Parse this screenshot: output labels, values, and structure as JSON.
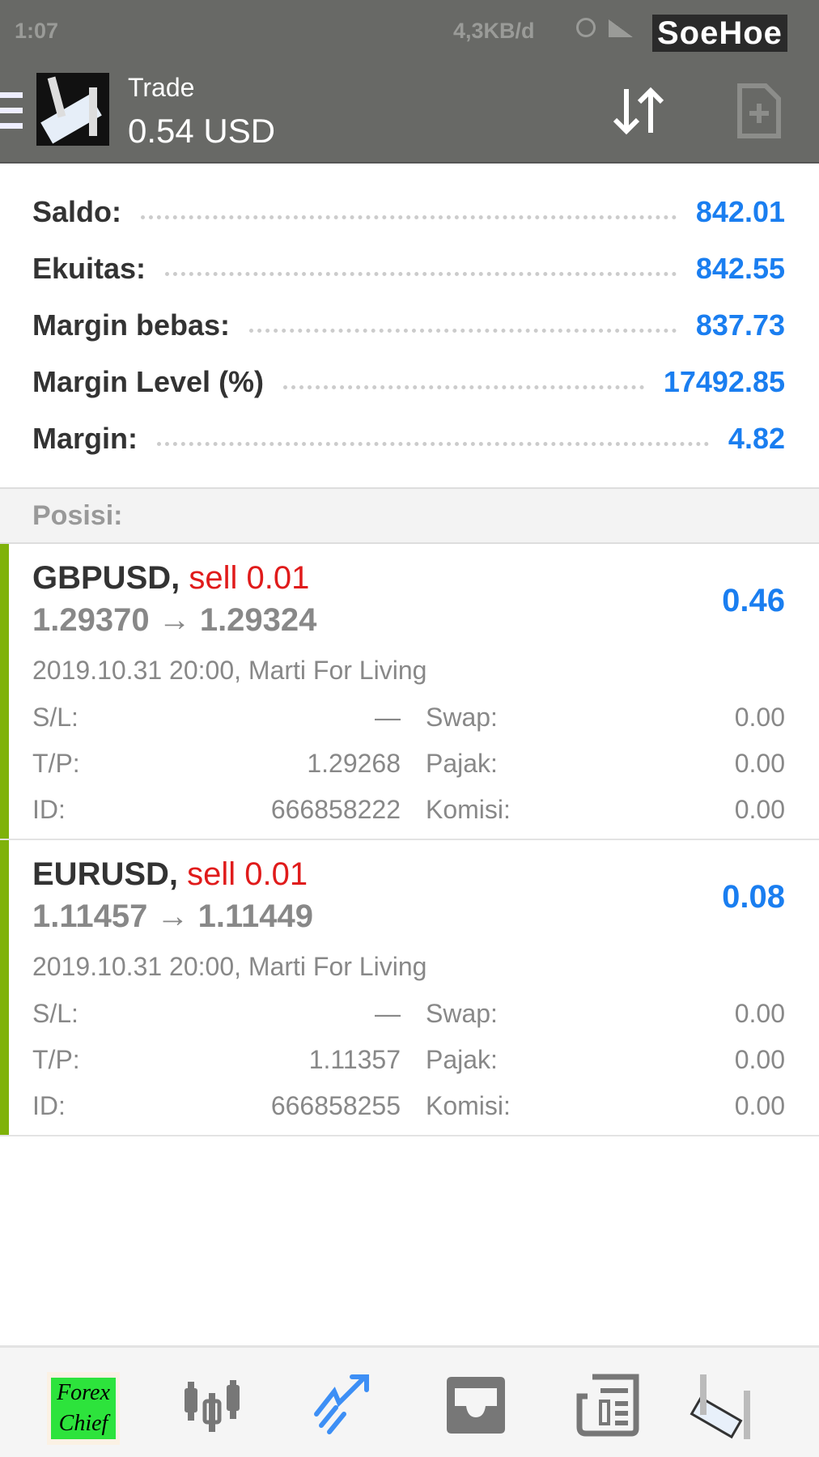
{
  "status_bar": {
    "time": "1:07",
    "network_speed": "4,3KB/d",
    "watermark": "SoeHoe"
  },
  "header": {
    "title": "Trade",
    "subtitle": "0.54 USD",
    "menu_icon": "hamburger-icon",
    "sort_icon": "sort-arrows-icon",
    "new_order_icon": "file-plus-icon"
  },
  "account": [
    {
      "label": "Saldo:",
      "value": "842.01"
    },
    {
      "label": "Ekuitas:",
      "value": "842.55"
    },
    {
      "label": "Margin bebas:",
      "value": "837.73"
    },
    {
      "label": "Margin Level (%)",
      "value": "17492.85"
    },
    {
      "label": "Margin:",
      "value": "4.82"
    }
  ],
  "positions_header": "Posisi:",
  "positions": [
    {
      "symbol": "GBPUSD,",
      "side": "sell 0.01",
      "prices": "1.29370 → 1.29324",
      "profit": "0.46",
      "datetime": "2019.10.31 20:00, Marti For Living",
      "sl_label": "S/L:",
      "sl": "—",
      "tp_label": "T/P:",
      "tp": "1.29268",
      "id_label": "ID:",
      "id": "666858222",
      "swap_label": "Swap:",
      "swap": "0.00",
      "tax_label": "Pajak:",
      "tax": "0.00",
      "commission_label": "Komisi:",
      "commission": "0.00"
    },
    {
      "symbol": "EURUSD,",
      "side": "sell 0.01",
      "prices": "1.11457 → 1.11449",
      "profit": "0.08",
      "datetime": "2019.10.31 20:00, Marti For Living",
      "sl_label": "S/L:",
      "sl": "—",
      "tp_label": "T/P:",
      "tp": "1.11357",
      "id_label": "ID:",
      "id": "666858255",
      "swap_label": "Swap:",
      "swap": "0.00",
      "tax_label": "Pajak:",
      "tax": "0.00",
      "commission_label": "Komisi:",
      "commission": "0.00"
    }
  ],
  "bottom_nav": {
    "logo_text": "Forex Chief",
    "items": [
      "quotes",
      "chart",
      "trade",
      "history",
      "news",
      "settings"
    ]
  },
  "colors": {
    "header": "#686966",
    "accent": "#1a7ef0",
    "sell": "#e01b1b",
    "position_bar": "#7fb20a"
  }
}
